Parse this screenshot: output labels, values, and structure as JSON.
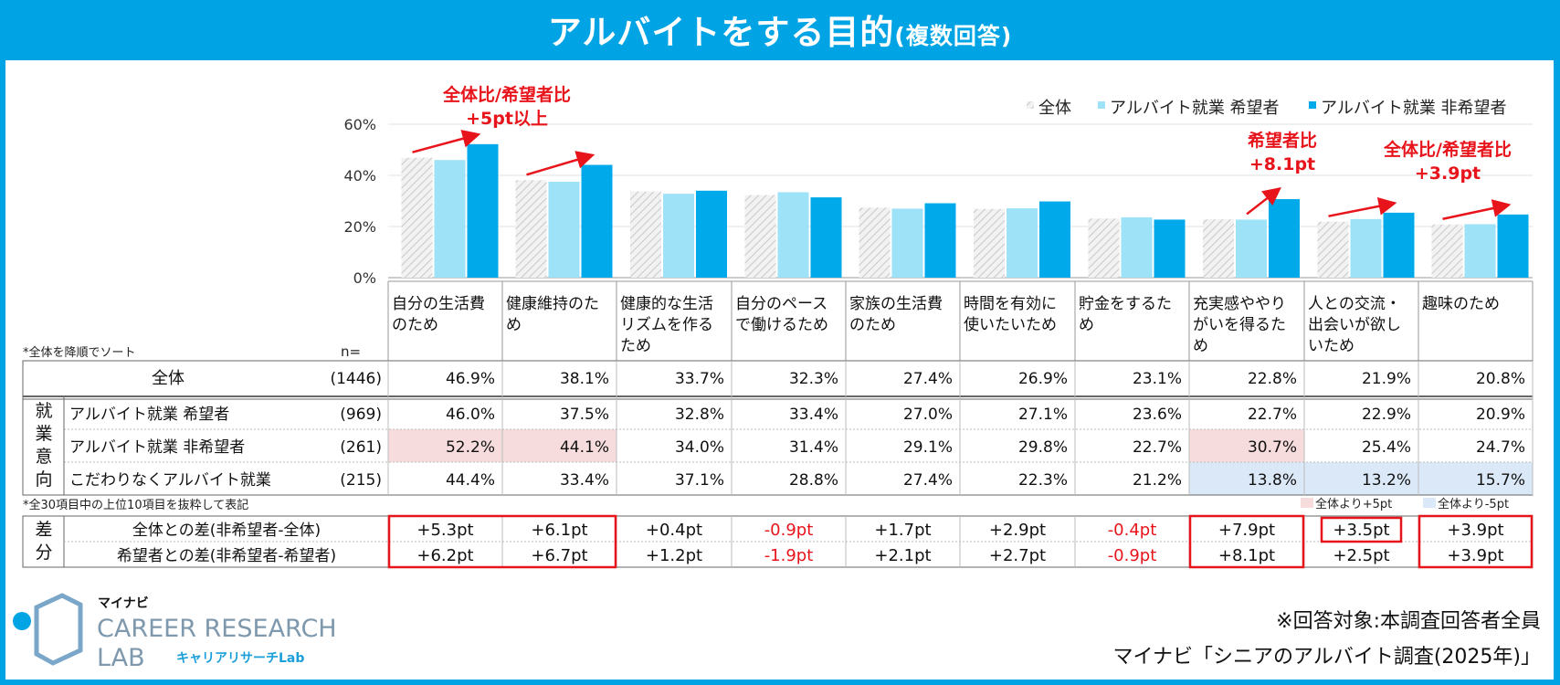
{
  "title": {
    "main": "アルバイトをする目的",
    "sub": "(複数回答)"
  },
  "colors": {
    "all": "#d9d9d9",
    "hope": "#9ee2f7",
    "nonhope": "#00a9ea",
    "red": "#e8141b",
    "pink": "#f6dcdc",
    "blue": "#dbe8f7"
  },
  "legend": {
    "all": "全体",
    "hope": "アルバイト就業 希望者",
    "nonhope": "アルバイト就業 非希望者"
  },
  "chart_data": {
    "type": "bar",
    "title": "アルバイトをする目的(複数回答)",
    "categories": [
      "自分の生活費のため",
      "健康維持のため",
      "健康的な生活リズムを作るため",
      "自分のペースで働けるため",
      "家族の生活費のため",
      "時間を有効に使いたいため",
      "貯金をするため",
      "充実感ややりがいを得るため",
      "人との交流・出会いが欲しいため",
      "趣味のため"
    ],
    "series": [
      {
        "name": "全体",
        "values": [
          46.9,
          38.1,
          33.7,
          32.3,
          27.4,
          26.9,
          23.1,
          22.8,
          21.9,
          20.8
        ]
      },
      {
        "name": "アルバイト就業 希望者",
        "values": [
          46.0,
          37.5,
          32.8,
          33.4,
          27.0,
          27.1,
          23.6,
          22.7,
          22.9,
          20.9
        ]
      },
      {
        "name": "アルバイト就業 非希望者",
        "values": [
          52.2,
          44.1,
          34.0,
          31.4,
          29.1,
          29.8,
          22.7,
          30.7,
          25.4,
          24.7
        ]
      }
    ],
    "ylim": [
      0,
      60
    ],
    "yticks": [
      "0%",
      "20%",
      "40%",
      "60%"
    ],
    "legend_position": "top-right"
  },
  "category_labels": [
    [
      "自分の生活費",
      "のため"
    ],
    [
      "健康維持のた",
      "め"
    ],
    [
      "健康的な生活",
      "リズムを作る",
      "ため"
    ],
    [
      "自分のペース",
      "で働けるため"
    ],
    [
      "家族の生活費",
      "のため"
    ],
    [
      "時間を有効に",
      "使いたいため"
    ],
    [
      "貯金をするた",
      "め"
    ],
    [
      "充実感ややり",
      "がいを得るた",
      "め"
    ],
    [
      "人との交流・",
      "出会いが欲し",
      "いため"
    ],
    [
      "趣味のため"
    ]
  ],
  "annotations": [
    {
      "lines": [
        "全体比/希望者比",
        "+5pt以上"
      ]
    },
    {
      "lines": [
        "希望者比",
        "+8.1pt"
      ]
    },
    {
      "lines": [
        "全体比/希望者比",
        "+3.9pt"
      ]
    }
  ],
  "table": {
    "sort_note": "*全体を降順でソート",
    "n_label": "n=",
    "group_label": [
      "就",
      "業",
      "意",
      "向"
    ],
    "rows": [
      {
        "label": "全体",
        "n": "(1446)",
        "values": [
          "46.9%",
          "38.1%",
          "33.7%",
          "32.3%",
          "27.4%",
          "26.9%",
          "23.1%",
          "22.8%",
          "21.9%",
          "20.8%"
        ],
        "hl": [
          "",
          "",
          "",
          "",
          "",
          "",
          "",
          "",
          "",
          ""
        ]
      },
      {
        "label": "アルバイト就業 希望者",
        "n": "(969)",
        "values": [
          "46.0%",
          "37.5%",
          "32.8%",
          "33.4%",
          "27.0%",
          "27.1%",
          "23.6%",
          "22.7%",
          "22.9%",
          "20.9%"
        ],
        "hl": [
          "",
          "",
          "",
          "",
          "",
          "",
          "",
          "",
          "",
          ""
        ]
      },
      {
        "label": "アルバイト就業 非希望者",
        "n": "(261)",
        "values": [
          "52.2%",
          "44.1%",
          "34.0%",
          "31.4%",
          "29.1%",
          "29.8%",
          "22.7%",
          "30.7%",
          "25.4%",
          "24.7%"
        ],
        "hl": [
          "pink",
          "pink",
          "",
          "",
          "",
          "",
          "",
          "pink",
          "",
          ""
        ]
      },
      {
        "label": "こだわりなくアルバイト就業",
        "n": "(215)",
        "values": [
          "44.4%",
          "33.4%",
          "37.1%",
          "28.8%",
          "27.4%",
          "22.3%",
          "21.2%",
          "13.8%",
          "13.2%",
          "15.7%"
        ],
        "hl": [
          "",
          "",
          "",
          "",
          "",
          "",
          "",
          "blue",
          "blue",
          "blue"
        ]
      }
    ],
    "top10_note": "*全30項目中の上位10項目を抜粋して表記",
    "hl_legend": {
      "pink": "全体より+5pt",
      "blue": "全体より-5pt"
    }
  },
  "diff": {
    "group_label": [
      "差",
      "分"
    ],
    "rows": [
      {
        "label": "全体との差(非希望者-全体)",
        "values": [
          "+5.3pt",
          "+6.1pt",
          "+0.4pt",
          "-0.9pt",
          "+1.7pt",
          "+2.9pt",
          "-0.4pt",
          "+7.9pt",
          "+3.5pt",
          "+3.9pt"
        ]
      },
      {
        "label": "希望者との差(非希望者-希望者)",
        "values": [
          "+6.2pt",
          "+6.7pt",
          "+1.2pt",
          "-1.9pt",
          "+2.1pt",
          "+2.7pt",
          "-0.9pt",
          "+8.1pt",
          "+2.5pt",
          "+3.9pt"
        ]
      }
    ]
  },
  "logo": {
    "top": "マイナビ",
    "line1": "CAREER RESEARCH",
    "line2": "LAB",
    "kana": "キャリアリサーチLab"
  },
  "footer": {
    "target": "※回答対象:本調査回答者全員",
    "source": "マイナビ「シニアのアルバイト調査(2025年)」"
  }
}
